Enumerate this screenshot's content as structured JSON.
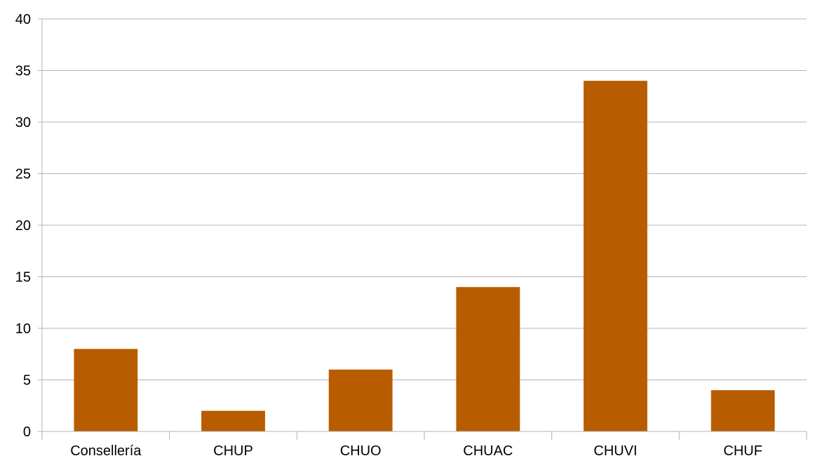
{
  "chart_data": {
    "type": "bar",
    "title": "",
    "xlabel": "",
    "ylabel": "",
    "categories": [
      "Consellería",
      "CHUP",
      "CHUO",
      "CHUAC",
      "CHUVI",
      "CHUF"
    ],
    "values": [
      8,
      2,
      6,
      14,
      34,
      4
    ],
    "ylim": [
      0,
      40
    ],
    "yticks": [
      0,
      5,
      10,
      15,
      20,
      25,
      30,
      35,
      40
    ],
    "ytick_labels": [
      "0",
      "5",
      "10",
      "15",
      "20",
      "25",
      "30",
      "35",
      "40"
    ],
    "grid": true,
    "legend": "none",
    "bar_color": "#b85c00",
    "grid_color": "#b3b3b3"
  }
}
